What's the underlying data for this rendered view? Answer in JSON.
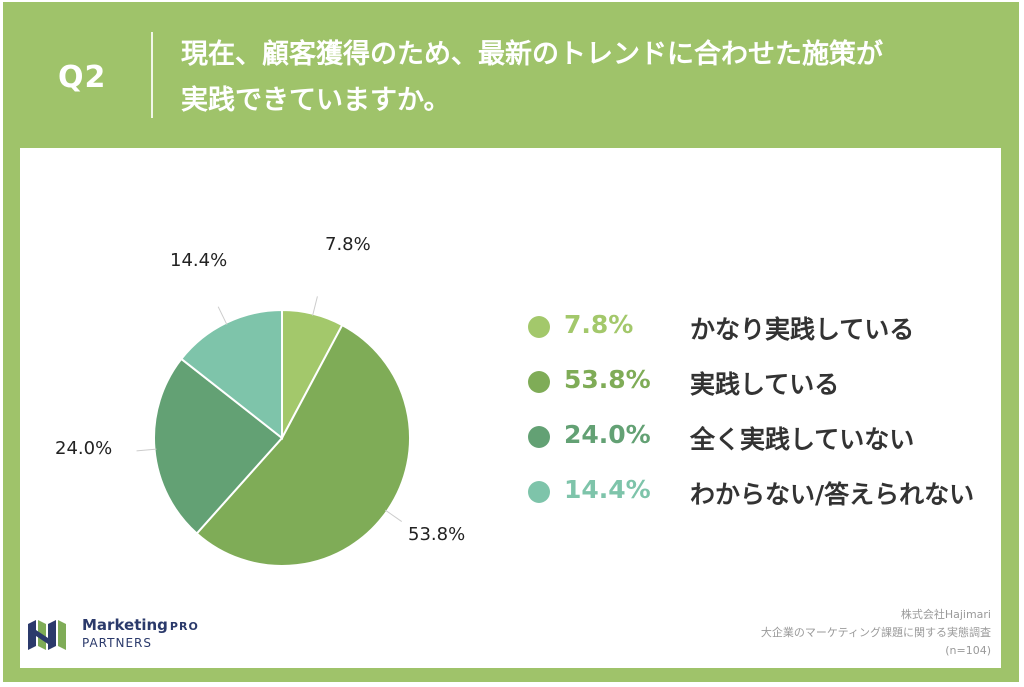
{
  "header": {
    "question_id": "Q2",
    "question_line1": "現在、顧客獲得のため、最新のトレンドに合わせた施策が",
    "question_line2": "実践できていますか。"
  },
  "chart_data": {
    "type": "pie",
    "slices": [
      {
        "label": "かなり実践している",
        "value": 7.8,
        "display": "7.8%",
        "color": "#a3c86b"
      },
      {
        "label": "実践している",
        "value": 53.8,
        "display": "53.8%",
        "color": "#7fac57"
      },
      {
        "label": "全く実践していない",
        "value": 24.0,
        "display": "24.0%",
        "color": "#63a174"
      },
      {
        "label": "わからない/答えられない",
        "value": 14.4,
        "display": "14.4%",
        "color": "#7ec4aa"
      }
    ],
    "legend_position": "right"
  },
  "footer": {
    "logo_name": "Marketing",
    "logo_pro": "PRO",
    "logo_sub": "PARTNERS",
    "source_line1": "株式会社Hajimari",
    "source_line2": "大企業のマーケティング課題に関する実態調査",
    "source_line3": "(n=104)"
  }
}
